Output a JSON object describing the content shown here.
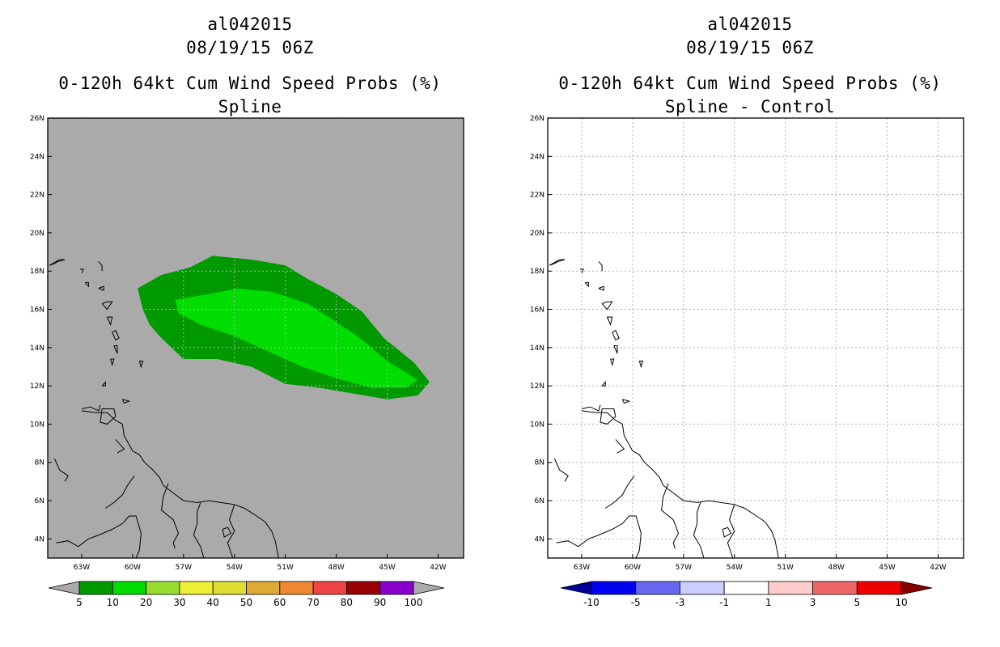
{
  "panels": [
    {
      "storm_id": "al042015",
      "datetime": "08/19/15 06Z",
      "product": "0-120h 64kt Cum Wind Speed Probs (%)",
      "subtitle": "Spline",
      "background": "#aaaaaa"
    },
    {
      "storm_id": "al042015",
      "datetime": "08/19/15 06Z",
      "product": "0-120h 64kt Cum Wind Speed Probs (%)",
      "subtitle": "Spline - Control",
      "background": "#ffffff"
    }
  ],
  "chart_data": [
    {
      "type": "filled-contour-map",
      "title": "0-120h 64kt Cum Wind Speed Probs (%) Spline",
      "lon_range": [
        -65,
        -40.5
      ],
      "lat_range": [
        3,
        26
      ],
      "x_ticks": [
        "63W",
        "60W",
        "57W",
        "54W",
        "51W",
        "48W",
        "45W",
        "42W"
      ],
      "x_tick_values": [
        -63,
        -60,
        -57,
        -54,
        -51,
        -48,
        -45,
        -42
      ],
      "y_ticks": [
        "4N",
        "6N",
        "8N",
        "10N",
        "12N",
        "14N",
        "16N",
        "18N",
        "20N",
        "22N",
        "24N",
        "26N"
      ],
      "y_tick_values": [
        4,
        6,
        8,
        10,
        12,
        14,
        16,
        18,
        20,
        22,
        24,
        26
      ],
      "contours": [
        {
          "level_range": "5-10",
          "color": "#009900",
          "polygon": [
            [
              -59.7,
              17.1
            ],
            [
              -58.3,
              17.8
            ],
            [
              -56.6,
              18.2
            ],
            [
              -55.3,
              18.8
            ],
            [
              -53.0,
              18.6
            ],
            [
              -51.0,
              18.3
            ],
            [
              -49.7,
              17.6
            ],
            [
              -48.0,
              16.8
            ],
            [
              -46.5,
              15.9
            ],
            [
              -45.2,
              14.5
            ],
            [
              -43.4,
              13.2
            ],
            [
              -42.5,
              12.2
            ],
            [
              -43.2,
              11.5
            ],
            [
              -45.0,
              11.3
            ],
            [
              -47.0,
              11.6
            ],
            [
              -49.0,
              11.9
            ],
            [
              -51.0,
              12.1
            ],
            [
              -53.0,
              13.0
            ],
            [
              -55.0,
              13.4
            ],
            [
              -57.0,
              13.4
            ],
            [
              -58.3,
              14.5
            ],
            [
              -59.0,
              15.2
            ],
            [
              -59.4,
              16.0
            ]
          ]
        },
        {
          "level_range": "10-20",
          "color": "#00dd00",
          "polygon": [
            [
              -57.5,
              16.5
            ],
            [
              -55.5,
              16.8
            ],
            [
              -53.8,
              17.1
            ],
            [
              -51.7,
              16.9
            ],
            [
              -49.7,
              16.3
            ],
            [
              -48.1,
              15.4
            ],
            [
              -46.6,
              14.5
            ],
            [
              -45.0,
              13.3
            ],
            [
              -43.2,
              12.3
            ],
            [
              -43.9,
              11.9
            ],
            [
              -45.9,
              11.9
            ],
            [
              -48.0,
              12.4
            ],
            [
              -50.0,
              13.0
            ],
            [
              -52.0,
              13.8
            ],
            [
              -54.0,
              14.6
            ],
            [
              -56.0,
              15.2
            ],
            [
              -57.3,
              15.8
            ]
          ]
        }
      ],
      "colorbar": {
        "labels": [
          "5",
          "10",
          "20",
          "30",
          "40",
          "50",
          "60",
          "70",
          "80",
          "90",
          "100"
        ],
        "colors": [
          "#009900",
          "#00dd00",
          "#99dd33",
          "#eeee33",
          "#dddd33",
          "#ddaa33",
          "#ee8833",
          "#ee4444",
          "#990000",
          "#8800cc"
        ],
        "under_color": "#aaaaaa",
        "over_color": "#aaaaaa"
      }
    },
    {
      "type": "filled-contour-map",
      "title": "0-120h 64kt Cum Wind Speed Probs (%) Spline - Control",
      "lon_range": [
        -65,
        -40.5
      ],
      "lat_range": [
        3,
        26
      ],
      "x_ticks": [
        "63W",
        "60W",
        "57W",
        "54W",
        "51W",
        "48W",
        "45W",
        "42W"
      ],
      "x_tick_values": [
        -63,
        -60,
        -57,
        -54,
        -51,
        -48,
        -45,
        -42
      ],
      "y_ticks": [
        "4N",
        "6N",
        "8N",
        "10N",
        "12N",
        "14N",
        "16N",
        "18N",
        "20N",
        "22N",
        "24N",
        "26N"
      ],
      "y_tick_values": [
        4,
        6,
        8,
        10,
        12,
        14,
        16,
        18,
        20,
        22,
        24,
        26
      ],
      "contours": [],
      "colorbar": {
        "labels": [
          "-10",
          "-5",
          "-3",
          "-1",
          "1",
          "3",
          "5",
          "10"
        ],
        "colors": [
          "#0000ee",
          "#6666ee",
          "#ccccff",
          "#ffffff",
          "#ffcccc",
          "#ee6666",
          "#ee0000"
        ],
        "under_color": "#000099",
        "over_color": "#880000"
      }
    }
  ],
  "coastlines": [
    [
      [
        -63.0,
        10.7
      ],
      [
        -62.2,
        10.6
      ],
      [
        -61.5,
        10.6
      ],
      [
        -61.0,
        10.2
      ],
      [
        -60.6,
        10.0
      ],
      [
        -60.5,
        9.4
      ],
      [
        -60.0,
        8.6
      ],
      [
        -59.6,
        8.4
      ],
      [
        -59.3,
        8.0
      ],
      [
        -58.8,
        7.6
      ],
      [
        -58.4,
        7.2
      ],
      [
        -58.2,
        6.8
      ],
      [
        -57.6,
        6.4
      ],
      [
        -57.0,
        6.0
      ],
      [
        -56.2,
        5.9
      ],
      [
        -55.5,
        6.0
      ],
      [
        -54.8,
        5.9
      ],
      [
        -54.0,
        5.8
      ],
      [
        -53.4,
        5.6
      ],
      [
        -52.7,
        5.2
      ],
      [
        -52.2,
        4.9
      ],
      [
        -51.8,
        4.4
      ],
      [
        -51.6,
        3.9
      ],
      [
        -51.4,
        3.0
      ]
    ],
    [
      [
        -63.0,
        10.8
      ],
      [
        -62.5,
        10.9
      ],
      [
        -62.0,
        10.7
      ],
      [
        -61.9,
        11.0
      ]
    ],
    [
      [
        -61.8,
        10.8
      ],
      [
        -61.1,
        10.8
      ],
      [
        -61.0,
        10.4
      ],
      [
        -61.5,
        10.0
      ],
      [
        -61.9,
        10.1
      ],
      [
        -61.8,
        10.8
      ]
    ],
    [
      [
        -60.6,
        11.3
      ],
      [
        -60.2,
        11.2
      ],
      [
        -60.5,
        11.1
      ],
      [
        -60.6,
        11.3
      ]
    ],
    [
      [
        -61.8,
        12.0
      ],
      [
        -61.6,
        12.2
      ],
      [
        -61.6,
        12.0
      ],
      [
        -61.8,
        12.0
      ]
    ],
    [
      [
        -61.3,
        13.4
      ],
      [
        -61.1,
        13.4
      ],
      [
        -61.2,
        13.1
      ],
      [
        -61.3,
        13.4
      ]
    ],
    [
      [
        -59.6,
        13.3
      ],
      [
        -59.4,
        13.3
      ],
      [
        -59.5,
        13.0
      ],
      [
        -59.6,
        13.3
      ]
    ],
    [
      [
        -61.1,
        14.1
      ],
      [
        -60.9,
        14.1
      ],
      [
        -60.9,
        13.7
      ],
      [
        -61.1,
        14.1
      ]
    ],
    [
      [
        -61.2,
        14.8
      ],
      [
        -61.0,
        14.9
      ],
      [
        -60.8,
        14.5
      ],
      [
        -61.0,
        14.4
      ],
      [
        -61.2,
        14.8
      ]
    ],
    [
      [
        -61.5,
        15.6
      ],
      [
        -61.2,
        15.6
      ],
      [
        -61.3,
        15.2
      ],
      [
        -61.5,
        15.6
      ]
    ],
    [
      [
        -61.8,
        16.3
      ],
      [
        -61.5,
        16.4
      ],
      [
        -61.2,
        16.4
      ],
      [
        -61.5,
        16.0
      ],
      [
        -61.8,
        16.3
      ]
    ],
    [
      [
        -62.0,
        17.1
      ],
      [
        -61.7,
        17.2
      ],
      [
        -61.7,
        17.0
      ],
      [
        -62.0,
        17.1
      ]
    ],
    [
      [
        -62.8,
        17.4
      ],
      [
        -62.6,
        17.4
      ],
      [
        -62.6,
        17.2
      ],
      [
        -62.8,
        17.4
      ]
    ],
    [
      [
        -63.1,
        18.1
      ],
      [
        -62.9,
        18.1
      ],
      [
        -63.0,
        17.9
      ]
    ],
    [
      [
        -64.9,
        18.3
      ],
      [
        -64.6,
        18.4
      ],
      [
        -64.4,
        18.5
      ],
      [
        -64.0,
        18.6
      ],
      [
        -64.3,
        18.6
      ],
      [
        -64.9,
        18.3
      ]
    ],
    [
      [
        -62.0,
        18.5
      ],
      [
        -61.8,
        18.3
      ],
      [
        -61.8,
        18.0
      ]
    ],
    [
      [
        -61.0,
        9.2
      ],
      [
        -60.5,
        8.7
      ],
      [
        -60.9,
        8.5
      ]
    ],
    [
      [
        -57.9,
        6.9
      ],
      [
        -58.2,
        6.2
      ],
      [
        -58.3,
        5.5
      ],
      [
        -57.6,
        5.0
      ],
      [
        -57.3,
        4.3
      ],
      [
        -57.6,
        3.8
      ],
      [
        -57.5,
        3.5
      ]
    ],
    [
      [
        -56.0,
        5.9
      ],
      [
        -56.2,
        5.4
      ],
      [
        -56.2,
        4.8
      ],
      [
        -56.4,
        4.2
      ],
      [
        -56.0,
        3.6
      ],
      [
        -55.8,
        3.0
      ]
    ],
    [
      [
        -54.0,
        5.8
      ],
      [
        -54.3,
        5.0
      ],
      [
        -54.0,
        4.4
      ],
      [
        -54.4,
        3.8
      ],
      [
        -54.1,
        3.0
      ]
    ],
    [
      [
        -64.5,
        3.8
      ],
      [
        -63.8,
        3.9
      ],
      [
        -63.2,
        3.6
      ],
      [
        -62.6,
        4.0
      ],
      [
        -62.0,
        4.2
      ],
      [
        -61.2,
        4.5
      ],
      [
        -60.6,
        4.8
      ],
      [
        -60.2,
        5.2
      ],
      [
        -59.8,
        5.2
      ],
      [
        -59.5,
        4.3
      ],
      [
        -59.6,
        3.4
      ],
      [
        -59.8,
        3.0
      ]
    ],
    [
      [
        -64.6,
        8.2
      ],
      [
        -64.3,
        7.6
      ],
      [
        -63.8,
        7.3
      ],
      [
        -64.0,
        7.0
      ]
    ],
    [
      [
        -54.7,
        4.5
      ],
      [
        -54.4,
        4.6
      ],
      [
        -54.2,
        4.3
      ],
      [
        -54.6,
        4.1
      ],
      [
        -54.7,
        4.5
      ]
    ],
    [
      [
        -61.6,
        5.6
      ],
      [
        -61.1,
        5.9
      ],
      [
        -60.6,
        6.3
      ],
      [
        -60.3,
        6.8
      ],
      [
        -59.9,
        7.3
      ]
    ]
  ]
}
